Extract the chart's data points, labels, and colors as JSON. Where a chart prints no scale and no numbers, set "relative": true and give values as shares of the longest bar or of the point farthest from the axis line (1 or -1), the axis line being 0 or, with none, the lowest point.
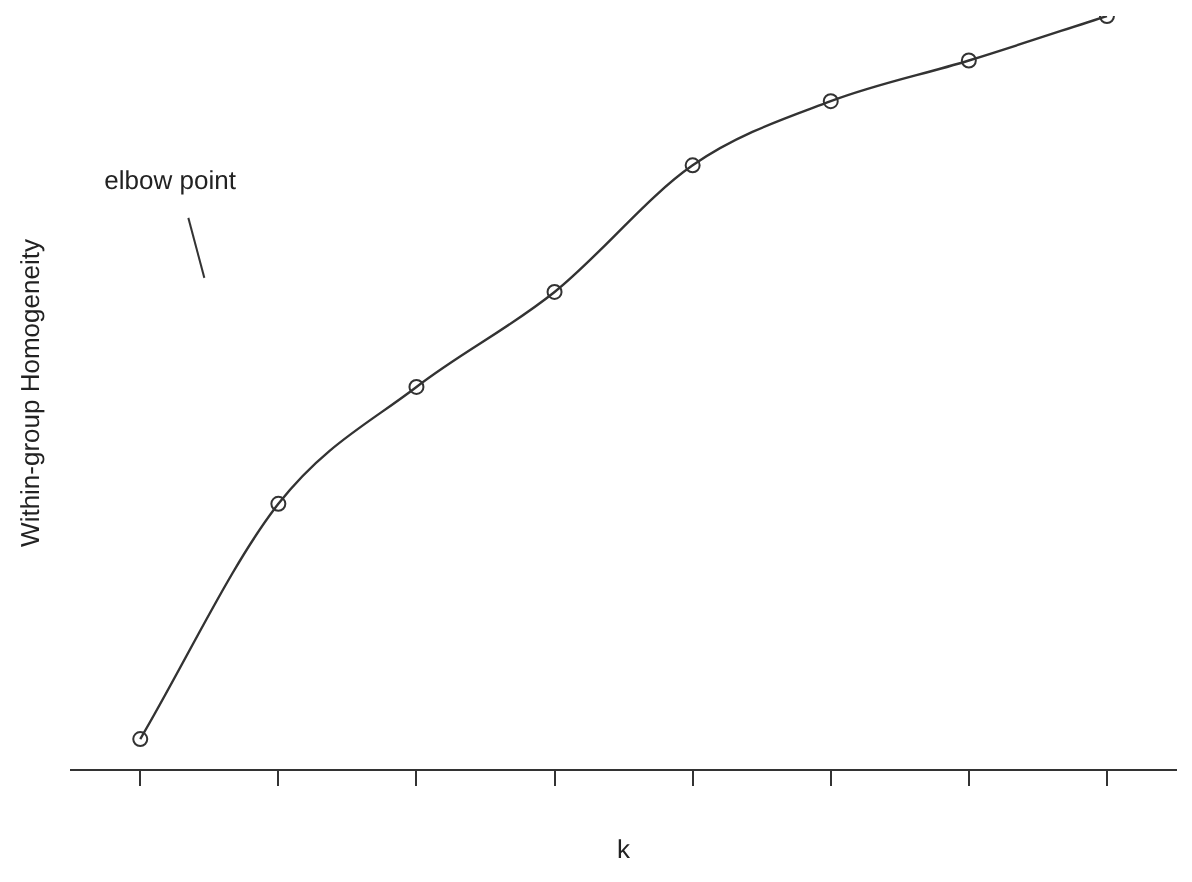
{
  "chart_data": {
    "type": "line",
    "xlabel": "k",
    "ylabel": "Within-group Homogeneity",
    "relative": true,
    "categories": [
      null,
      null,
      null,
      null,
      null,
      null,
      null,
      null
    ],
    "series": [
      {
        "color": "#333333",
        "values": [
          0.041,
          0.353,
          0.508,
          0.634,
          0.802,
          0.887,
          0.941,
          1.0
        ]
      }
    ],
    "marker": "circle",
    "line_style": "solid",
    "grid": false,
    "legend": false,
    "annotations": [
      "elbow point"
    ]
  }
}
